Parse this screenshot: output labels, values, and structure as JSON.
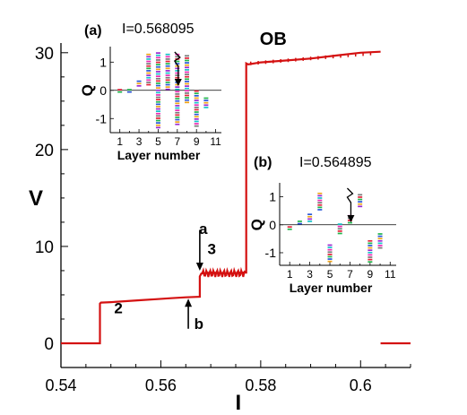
{
  "chart_data": [
    {
      "type": "line",
      "xlabel": "I",
      "ylabel": "V",
      "xlim": [
        0.54,
        0.61
      ],
      "ylim": [
        -2.5,
        31
      ],
      "x_ticks": [
        0.54,
        0.56,
        0.58,
        0.6
      ],
      "x_tick_labels": [
        "0.54",
        "0.56",
        "0.58",
        "0.6"
      ],
      "y_ticks": [
        0,
        10,
        20,
        30
      ],
      "y_tick_labels": [
        "0",
        "10",
        "20",
        "30"
      ],
      "series": [
        {
          "color": "#d41111",
          "x": [
            0.54,
            0.5478,
            0.5478,
            0.5478,
            0.548,
            0.55,
            0.553,
            0.556,
            0.559,
            0.562,
            0.565,
            0.5678,
            0.5678,
            0.5681,
            0.57,
            0.572,
            0.574,
            0.576,
            0.5771,
            0.5771,
            0.5775,
            0.58,
            0.585,
            0.59,
            0.595,
            0.6,
            0.604,
            0.604,
            0.61
          ],
          "y": [
            0,
            0,
            0,
            4.1,
            4.2,
            4.25,
            4.35,
            4.45,
            4.55,
            4.65,
            4.75,
            4.8,
            6.9,
            7.2,
            7.3,
            7.25,
            7.2,
            7.3,
            7.3,
            28.9,
            28.8,
            29.0,
            29.2,
            29.4,
            29.7,
            30.0,
            30.1,
            0,
            0
          ]
        }
      ],
      "annotations": [
        {
          "text": "OB",
          "x": 0.5825,
          "y": 30.8
        },
        {
          "text": "a",
          "x": 0.5685,
          "y": 11.3
        },
        {
          "text": "3",
          "x": 0.5702,
          "y": 9.2
        },
        {
          "text": "2",
          "x": 0.5515,
          "y": 3.1
        },
        {
          "text": "b",
          "x": 0.5676,
          "y": 1.5
        }
      ],
      "arrows": [
        {
          "from": [
            0.5678,
            11.7
          ],
          "to": [
            0.5678,
            7.5
          ]
        },
        {
          "from": [
            0.5655,
            1.5
          ],
          "to": [
            0.5655,
            4.6
          ]
        }
      ]
    },
    {
      "type": "scatter",
      "panel_label": "(a)",
      "title": "I=0.568095",
      "xlabel": "Layer number",
      "ylabel": "Q",
      "x_tick_labels": [
        "1",
        "3",
        "5",
        "7",
        "9",
        "11"
      ],
      "y_tick_labels": [
        "-1",
        "0",
        "1"
      ],
      "x_ticks": [
        1,
        3,
        5,
        7,
        9,
        11
      ],
      "y_ticks": [
        -1,
        0,
        1
      ],
      "xlim": [
        0,
        11.6
      ],
      "ylim": [
        -1.5,
        1.55
      ],
      "layers": [
        1,
        2,
        3,
        4,
        5,
        6,
        7,
        8,
        9,
        10
      ],
      "q_min": [
        -0.1,
        -0.05,
        0.15,
        0.2,
        -1.3,
        0.0,
        -1.25,
        -0.4,
        -1.3,
        -0.65
      ],
      "q_max": [
        0.05,
        0.05,
        0.35,
        1.3,
        1.35,
        1.3,
        1.3,
        1.25,
        0.0,
        -0.25
      ],
      "arrow_at_layer": 7
    },
    {
      "type": "scatter",
      "panel_label": "(b)",
      "title": "I=0.564895",
      "xlabel": "Layer number",
      "ylabel": "Q",
      "x_tick_labels": [
        "1",
        "3",
        "5",
        "7",
        "9",
        "11"
      ],
      "y_tick_labels": [
        "-1",
        "0",
        "1"
      ],
      "x_ticks": [
        1,
        3,
        5,
        7,
        9,
        11
      ],
      "y_ticks": [
        -1,
        0,
        1
      ],
      "xlim": [
        0,
        11.6
      ],
      "ylim": [
        -1.45,
        1.5
      ],
      "layers": [
        1,
        2,
        3,
        4,
        5,
        6,
        7,
        8,
        9,
        10
      ],
      "q_min": [
        -0.15,
        0.0,
        0.15,
        0.5,
        -1.35,
        -0.3,
        0.05,
        0.65,
        -1.3,
        -0.8
      ],
      "q_max": [
        -0.05,
        0.15,
        0.4,
        1.15,
        -0.7,
        0.05,
        0.35,
        1.1,
        -0.55,
        -0.3
      ],
      "arrow_at_layer": 7
    }
  ]
}
